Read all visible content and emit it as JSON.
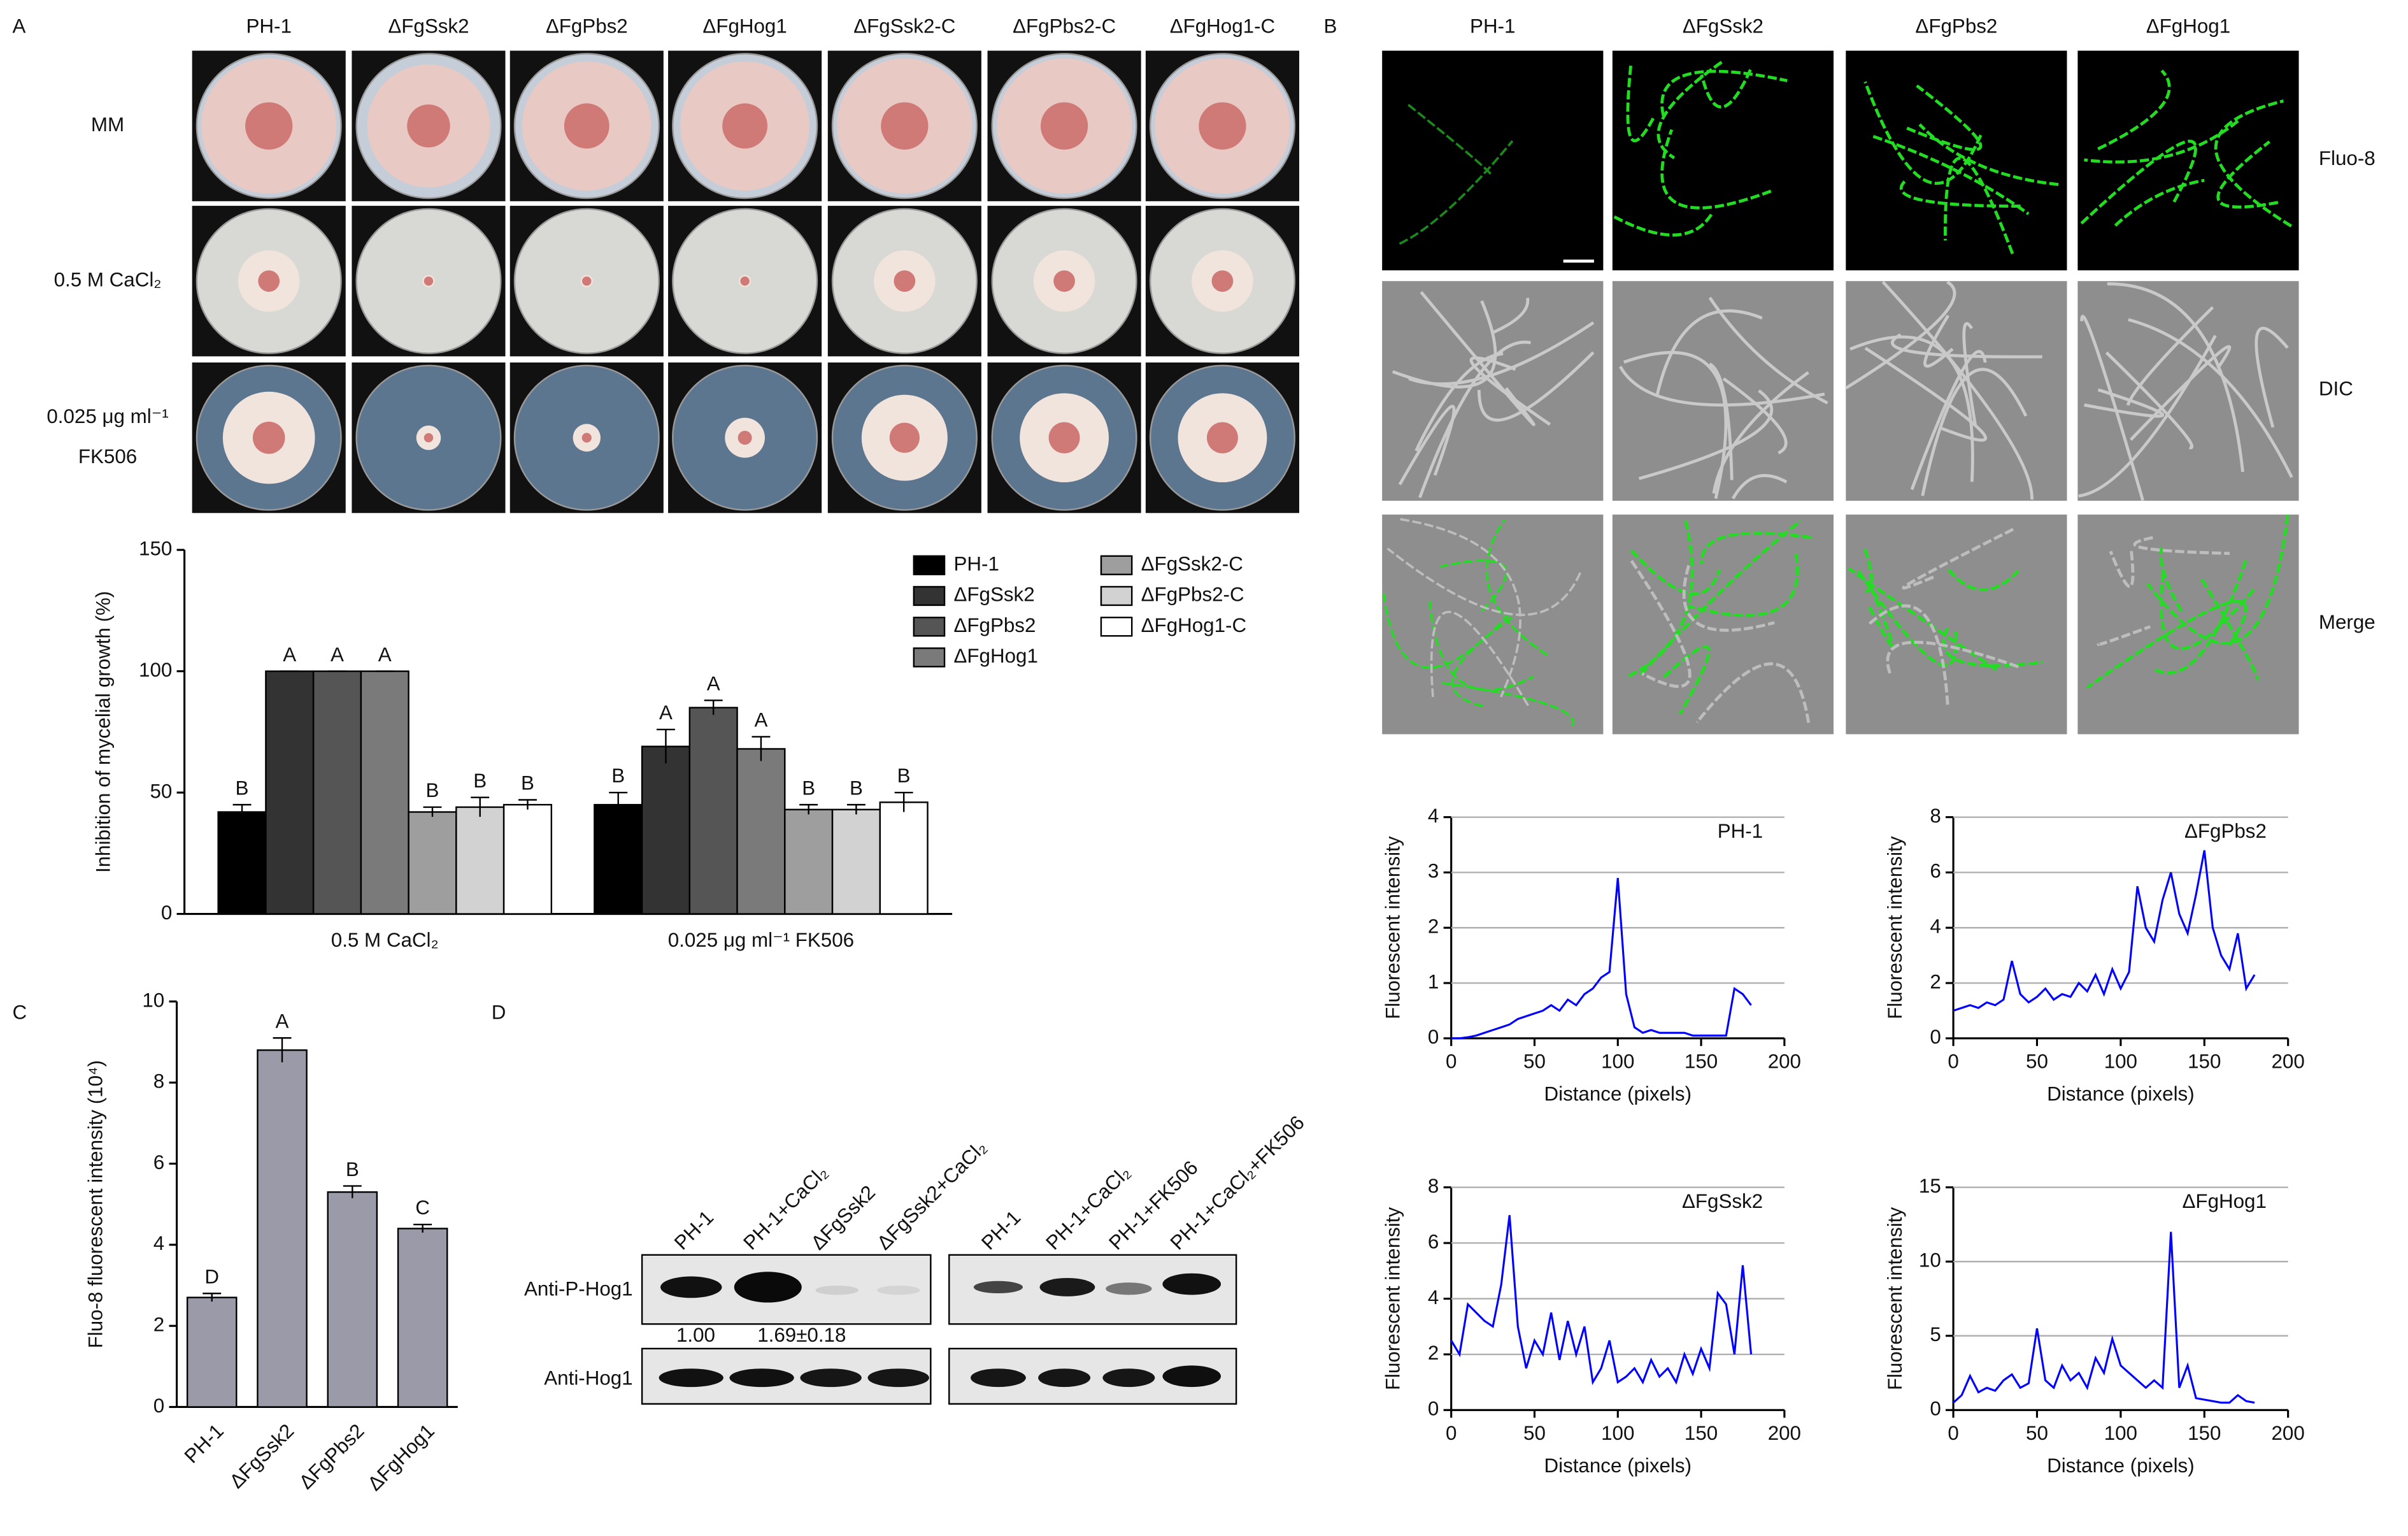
{
  "panel_labels": [
    "A",
    "B",
    "C",
    "D"
  ],
  "panel_a": {
    "columns": [
      "PH-1",
      "ΔFgSsk2",
      "ΔFgPbs2",
      "ΔFgHog1",
      "ΔFgSsk2-C",
      "ΔFgPbs2-C",
      "ΔFgHog1-C"
    ],
    "rows": [
      [
        "MM"
      ],
      [
        "0.5 M CaCl₂"
      ],
      [
        "0.025 μg ml⁻¹",
        "FK506"
      ]
    ]
  },
  "panel_b": {
    "columns": [
      "PH-1",
      "ΔFgSsk2",
      "ΔFgPbs2",
      "ΔFgHog1"
    ],
    "rows": [
      "Fluo-8",
      "DIC",
      "Merge"
    ]
  },
  "panel_d": {
    "left_lanes": [
      "PH-1",
      "PH-1+CaCl₂",
      "ΔFgSsk2",
      "ΔFgSsk2+CaCl₂"
    ],
    "right_lanes": [
      "PH-1",
      "PH-1+CaCl₂",
      "PH-1+FK506",
      "PH-1+CaCl₂+FK506"
    ],
    "rows": [
      "Anti-P-Hog1",
      "Anti-Hog1"
    ],
    "quantification": [
      "1.00",
      "1.69±0.18"
    ]
  },
  "chart_data": [
    {
      "type": "bar",
      "y_label": "Inhibition of mycelial growth (%)",
      "categories": [
        "0.5 M CaCl₂",
        "0.025 μg ml⁻¹ FK506"
      ],
      "series": [
        {
          "name": "PH-1",
          "color": "#000000",
          "values": [
            42,
            45
          ],
          "errors": [
            3,
            5
          ],
          "letters": [
            "B",
            "B"
          ]
        },
        {
          "name": "ΔFgSsk2",
          "color": "#333333",
          "values": [
            100,
            69
          ],
          "errors": [
            0,
            7
          ],
          "letters": [
            "A",
            "A"
          ]
        },
        {
          "name": "ΔFgPbs2",
          "color": "#555555",
          "values": [
            100,
            85
          ],
          "errors": [
            0,
            3
          ],
          "letters": [
            "A",
            "A"
          ]
        },
        {
          "name": "ΔFgHog1",
          "color": "#7a7a7a",
          "values": [
            100,
            68
          ],
          "errors": [
            0,
            5
          ],
          "letters": [
            "A",
            "A"
          ]
        },
        {
          "name": "ΔFgSsk2-C",
          "color": "#9e9e9e",
          "values": [
            42,
            43
          ],
          "errors": [
            2,
            2
          ],
          "letters": [
            "B",
            "B"
          ]
        },
        {
          "name": "ΔFgPbs2-C",
          "color": "#d2d2d2",
          "values": [
            44,
            43
          ],
          "errors": [
            4,
            2
          ],
          "letters": [
            "B",
            "B"
          ]
        },
        {
          "name": "ΔFgHog1-C",
          "color": "#ffffff",
          "values": [
            45,
            46
          ],
          "errors": [
            2,
            4
          ],
          "letters": [
            "B",
            "B"
          ]
        }
      ],
      "ylim": [
        0,
        150
      ],
      "yticks": [
        0,
        50,
        100,
        150
      ]
    },
    {
      "type": "bar",
      "y_label": "Fluo-8 fluorescent intensity (10⁴)",
      "categories": [
        "PH-1",
        "ΔFgSsk2",
        "ΔFgPbs2",
        "ΔFgHog1"
      ],
      "values": [
        2.7,
        8.8,
        5.3,
        4.4
      ],
      "errors": [
        0.1,
        0.3,
        0.15,
        0.1
      ],
      "letters": [
        "D",
        "A",
        "B",
        "C"
      ],
      "color": "#9a9aa8",
      "ylim": [
        0,
        10
      ],
      "yticks": [
        0,
        2,
        4,
        6,
        8,
        10
      ]
    },
    {
      "type": "line",
      "title": "PH-1",
      "x_label": "Distance (pixels)",
      "y_label": "Fluorescent intensity",
      "x": [
        0,
        5,
        10,
        15,
        20,
        25,
        30,
        35,
        40,
        45,
        50,
        55,
        60,
        65,
        70,
        75,
        80,
        85,
        90,
        95,
        100,
        105,
        110,
        115,
        120,
        125,
        130,
        135,
        140,
        145,
        150,
        155,
        160,
        165,
        170,
        175,
        180
      ],
      "values": [
        0,
        0,
        0.02,
        0.05,
        0.1,
        0.15,
        0.2,
        0.25,
        0.35,
        0.4,
        0.45,
        0.5,
        0.6,
        0.5,
        0.7,
        0.6,
        0.8,
        0.9,
        1.1,
        1.2,
        2.9,
        0.8,
        0.2,
        0.1,
        0.15,
        0.1,
        0.1,
        0.1,
        0.1,
        0.05,
        0.05,
        0.05,
        0.05,
        0.05,
        0.9,
        0.8,
        0.6
      ],
      "color": "#0000ff",
      "xlim": [
        0,
        200
      ],
      "xticks": [
        0,
        50,
        100,
        150,
        200
      ],
      "ylim": [
        0,
        4
      ],
      "yticks": [
        0,
        1,
        2,
        3,
        4
      ],
      "grid": true
    },
    {
      "type": "line",
      "title": "ΔFgPbs2",
      "x_label": "Distance (pixels)",
      "y_label": "Fluorescent intensity",
      "x": [
        0,
        5,
        10,
        15,
        20,
        25,
        30,
        35,
        40,
        45,
        50,
        55,
        60,
        65,
        70,
        75,
        80,
        85,
        90,
        95,
        100,
        105,
        110,
        115,
        120,
        125,
        130,
        135,
        140,
        145,
        150,
        155,
        160,
        165,
        170,
        175,
        180
      ],
      "values": [
        1.0,
        1.1,
        1.2,
        1.1,
        1.3,
        1.2,
        1.4,
        2.8,
        1.6,
        1.3,
        1.5,
        1.8,
        1.4,
        1.6,
        1.5,
        2.0,
        1.7,
        2.3,
        1.6,
        2.5,
        1.8,
        2.4,
        5.5,
        4.0,
        3.5,
        5.0,
        6.0,
        4.5,
        3.8,
        5.2,
        6.8,
        4.0,
        3.0,
        2.5,
        3.8,
        1.8,
        2.3
      ],
      "color": "#0000ff",
      "xlim": [
        0,
        200
      ],
      "xticks": [
        0,
        50,
        100,
        150,
        200
      ],
      "ylim": [
        0,
        8
      ],
      "yticks": [
        0,
        2,
        4,
        6,
        8
      ],
      "grid": true
    },
    {
      "type": "line",
      "title": "ΔFgSsk2",
      "x_label": "Distance (pixels)",
      "y_label": "Fluorescent intensity",
      "x": [
        0,
        5,
        10,
        15,
        20,
        25,
        30,
        35,
        40,
        45,
        50,
        55,
        60,
        65,
        70,
        75,
        80,
        85,
        90,
        95,
        100,
        105,
        110,
        115,
        120,
        125,
        130,
        135,
        140,
        145,
        150,
        155,
        160,
        165,
        170,
        175,
        180
      ],
      "values": [
        2.5,
        2.0,
        3.8,
        3.5,
        3.2,
        3.0,
        4.5,
        7.0,
        3.0,
        1.5,
        2.5,
        2.0,
        3.5,
        1.8,
        3.2,
        2.0,
        3.0,
        1.0,
        1.5,
        2.5,
        1.0,
        1.2,
        1.5,
        1.0,
        1.8,
        1.2,
        1.5,
        1.0,
        2.0,
        1.3,
        2.2,
        1.5,
        4.2,
        3.8,
        2.0,
        5.2,
        2.0
      ],
      "color": "#0000ff",
      "xlim": [
        0,
        200
      ],
      "xticks": [
        0,
        50,
        100,
        150,
        200
      ],
      "ylim": [
        0,
        8
      ],
      "yticks": [
        0,
        2,
        4,
        6,
        8
      ],
      "grid": true
    },
    {
      "type": "line",
      "title": "ΔFgHog1",
      "x_label": "Distance (pixels)",
      "y_label": "Fluorescent intensity",
      "x": [
        0,
        5,
        10,
        15,
        20,
        25,
        30,
        35,
        40,
        45,
        50,
        55,
        60,
        65,
        70,
        75,
        80,
        85,
        90,
        95,
        100,
        105,
        110,
        115,
        120,
        125,
        130,
        135,
        140,
        145,
        150,
        155,
        160,
        165,
        170,
        175,
        180
      ],
      "values": [
        0.5,
        1.0,
        2.3,
        1.2,
        1.5,
        1.3,
        2.0,
        2.4,
        1.5,
        1.8,
        5.5,
        2.0,
        1.5,
        3.0,
        2.0,
        2.5,
        1.5,
        3.5,
        2.5,
        4.8,
        3.0,
        2.5,
        2.0,
        1.5,
        2.0,
        1.5,
        12.0,
        1.5,
        3.0,
        0.8,
        0.7,
        0.6,
        0.5,
        0.5,
        1.0,
        0.6,
        0.5
      ],
      "color": "#0000ff",
      "xlim": [
        0,
        200
      ],
      "xticks": [
        0,
        50,
        100,
        150,
        200
      ],
      "ylim": [
        0,
        15
      ],
      "yticks": [
        0,
        5,
        10,
        15
      ],
      "grid": true
    }
  ]
}
